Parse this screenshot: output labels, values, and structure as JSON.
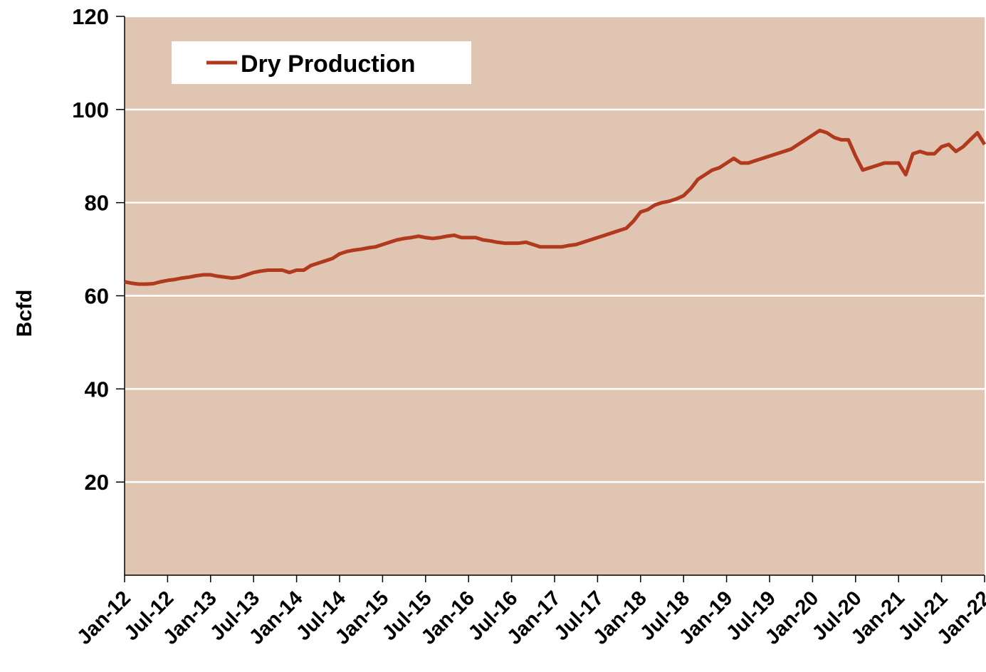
{
  "chart_data": {
    "type": "line",
    "y_label": "Bcfd",
    "categories": [
      "Jan-12",
      null,
      null,
      null,
      null,
      null,
      "Jul-12",
      null,
      null,
      null,
      null,
      null,
      "Jan-13",
      null,
      null,
      null,
      null,
      null,
      "Jul-13",
      null,
      null,
      null,
      null,
      null,
      "Jan-14",
      null,
      null,
      null,
      null,
      null,
      "Jul-14",
      null,
      null,
      null,
      null,
      null,
      "Jan-15",
      null,
      null,
      null,
      null,
      null,
      "Jul-15",
      null,
      null,
      null,
      null,
      null,
      "Jan-16",
      null,
      null,
      null,
      null,
      null,
      "Jul-16",
      null,
      null,
      null,
      null,
      null,
      "Jan-17",
      null,
      null,
      null,
      null,
      null,
      "Jul-17",
      null,
      null,
      null,
      null,
      null,
      "Jan-18",
      null,
      null,
      null,
      null,
      null,
      "Jul-18",
      null,
      null,
      null,
      null,
      null,
      "Jan-19",
      null,
      null,
      null,
      null,
      null,
      "Jul-19",
      null,
      null,
      null,
      null,
      null,
      "Jan-20",
      null,
      null,
      null,
      null,
      null,
      "Jul-20",
      null,
      null,
      null,
      null,
      null,
      "Jan-21",
      null,
      null,
      null,
      null,
      null,
      "Jul-21",
      null,
      null,
      null,
      null,
      null,
      "Jan-22"
    ],
    "series": [
      {
        "name": "Dry Production",
        "color": "#b0391e",
        "values": [
          63,
          62.7,
          62.5,
          62.5,
          62.6,
          63,
          63.3,
          63.5,
          63.8,
          64,
          64.3,
          64.5,
          64.5,
          64.2,
          64,
          63.8,
          64,
          64.5,
          65,
          65.3,
          65.5,
          65.5,
          65.5,
          65,
          65.5,
          65.5,
          66.5,
          67,
          67.5,
          68,
          69,
          69.5,
          69.8,
          70,
          70.3,
          70.5,
          71,
          71.5,
          72,
          72.3,
          72.5,
          72.8,
          72.5,
          72.3,
          72.5,
          72.8,
          73,
          72.5,
          72.5,
          72.5,
          72,
          71.8,
          71.5,
          71.3,
          71.3,
          71.3,
          71.5,
          71,
          70.5,
          70.5,
          70.5,
          70.5,
          70.8,
          71,
          71.5,
          72,
          72.5,
          73,
          73.5,
          74,
          74.5,
          76,
          78,
          78.5,
          79.5,
          80,
          80.3,
          80.8,
          81.5,
          83,
          85,
          86,
          87,
          87.5,
          88.5,
          89.5,
          88.5,
          88.5,
          89,
          89.5,
          90,
          90.5,
          91,
          91.5,
          92.5,
          93.5,
          94.5,
          95.5,
          95,
          94,
          93.5,
          93.5,
          90,
          87,
          87.5,
          88,
          88.5,
          88.5,
          88.5,
          86,
          90.5,
          91,
          90.5,
          90.5,
          92,
          92.5,
          91,
          92,
          93.5,
          95,
          92.5
        ]
      }
    ],
    "ylim": [
      0,
      120
    ],
    "yticks": [
      20,
      40,
      60,
      80,
      100,
      120
    ],
    "grid": true,
    "legend": "upper left",
    "background": "#dfc5b2"
  }
}
